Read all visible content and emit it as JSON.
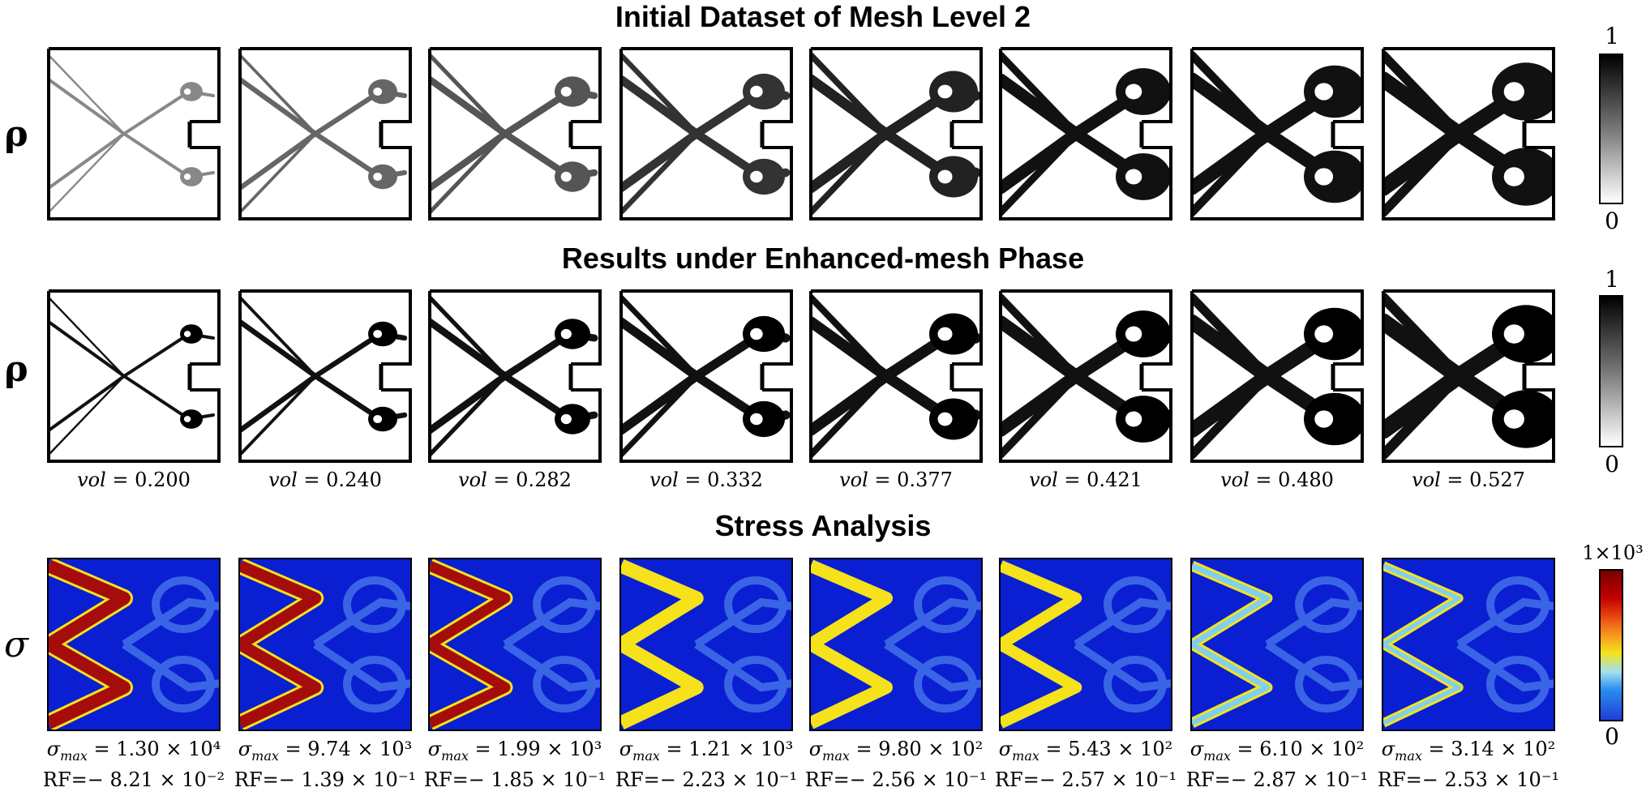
{
  "titles": {
    "row1": "Initial Dataset of Mesh Level 2",
    "row2": "Results under Enhanced-mesh Phase",
    "row3": "Stress Analysis"
  },
  "row_labels": {
    "rho": "ρ",
    "sigma": "σ"
  },
  "colorbar_density": {
    "max": "1",
    "min": "0"
  },
  "colorbar_stress": {
    "max": "1×10³",
    "min": "0"
  },
  "vol_label": "vol",
  "sigma_label": "σ",
  "sigma_sub": "max",
  "rf_label": "RF=−",
  "panels": [
    {
      "vol": "0.200",
      "sigma_max": "1.30 × 10⁴",
      "rf": "8.21 × 10⁻²"
    },
    {
      "vol": "0.240",
      "sigma_max": "9.74 × 10³",
      "rf": "1.39 × 10⁻¹"
    },
    {
      "vol": "0.282",
      "sigma_max": "1.99 × 10³",
      "rf": "1.85 × 10⁻¹"
    },
    {
      "vol": "0.332",
      "sigma_max": "1.21 × 10³",
      "rf": "2.23 × 10⁻¹"
    },
    {
      "vol": "0.377",
      "sigma_max": "9.80 × 10²",
      "rf": "2.56 × 10⁻¹"
    },
    {
      "vol": "0.421",
      "sigma_max": "5.43 × 10²",
      "rf": "2.57 × 10⁻¹"
    },
    {
      "vol": "0.480",
      "sigma_max": "6.10 × 10²",
      "rf": "2.87 × 10⁻¹"
    },
    {
      "vol": "0.527",
      "sigma_max": "3.14 × 10²",
      "rf": "2.53 × 10⁻¹"
    }
  ],
  "colors": {
    "stress_background": "#0a1fd1",
    "stress_low": "#3a64e6",
    "stress_mid": "#f5e21a",
    "stress_high": "#a50d0d"
  }
}
